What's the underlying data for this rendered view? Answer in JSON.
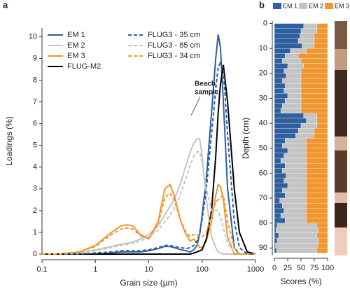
{
  "chart_data": [
    {
      "type": "line",
      "label": "a",
      "xlabel": "Grain size (µm)",
      "ylabel": "Loadings (%)",
      "log_x": true,
      "xlim": [
        0.1,
        1000
      ],
      "xticks": [
        0.1,
        1,
        10,
        100,
        1000
      ],
      "ylim": [
        0,
        10.4
      ],
      "yticks": [
        0,
        1,
        2,
        3,
        4,
        5,
        6,
        7,
        8,
        9,
        10
      ],
      "annotation": [
        "Beach",
        "sample"
      ],
      "x": [
        0.1,
        0.2,
        0.5,
        1,
        2,
        3,
        4,
        5,
        7,
        10,
        15,
        20,
        25,
        30,
        40,
        50,
        60,
        70,
        80,
        90,
        100,
        120,
        150,
        180,
        200,
        220,
        250,
        300,
        400,
        500,
        700,
        1000
      ],
      "series": [
        {
          "name": "EM 1",
          "color": "#2e5f9e",
          "dash": false,
          "values": [
            0,
            0,
            0,
            0,
            0.05,
            0.1,
            0.1,
            0.1,
            0.1,
            0.15,
            0.25,
            0.35,
            0.35,
            0.3,
            0.2,
            0.15,
            0.1,
            0.2,
            0.4,
            0.9,
            1.8,
            3.5,
            6.5,
            9,
            10.1,
            9.5,
            7,
            3,
            0.3,
            0,
            0,
            0
          ]
        },
        {
          "name": "EM 2",
          "color": "#c4c4c4",
          "dash": false,
          "values": [
            0,
            0,
            0.05,
            0.2,
            0.35,
            0.45,
            0.5,
            0.55,
            0.7,
            0.9,
            1.3,
            1.8,
            2.2,
            2.5,
            3.3,
            4.1,
            4.7,
            5.1,
            5.3,
            5.3,
            4.5,
            2.5,
            0.8,
            0.3,
            0.1,
            0.05,
            0,
            0,
            0,
            0,
            0,
            0
          ]
        },
        {
          "name": "EM 3",
          "color": "#f0962e",
          "dash": false,
          "values": [
            0,
            0,
            0.1,
            0.4,
            1.0,
            1.3,
            1.35,
            1.3,
            0.9,
            0.7,
            1.5,
            3.0,
            3.2,
            2.7,
            1.5,
            0.9,
            0.6,
            0.7,
            0.5,
            0.3,
            0.3,
            0.6,
            1.5,
            2.7,
            3.2,
            3.1,
            2.5,
            0.8,
            0,
            0,
            0,
            0
          ]
        },
        {
          "name": "FLUG-M2",
          "color": "#000000",
          "dash": false,
          "values": [
            0,
            0,
            0,
            0,
            0,
            0,
            0,
            0,
            0,
            0,
            0,
            0,
            0,
            0,
            0,
            0,
            0,
            0.05,
            0.1,
            0.15,
            0.2,
            0.7,
            2,
            4.5,
            6.5,
            7.8,
            8.7,
            7,
            3,
            1,
            0.1,
            0
          ]
        },
        {
          "name": "FLUG3 - 35 cm",
          "color": "#2e5f9e",
          "dash": true,
          "values": [
            0,
            0,
            0,
            0.05,
            0.1,
            0.15,
            0.15,
            0.15,
            0.15,
            0.2,
            0.3,
            0.4,
            0.4,
            0.35,
            0.3,
            0.25,
            0.3,
            0.4,
            0.6,
            1.0,
            1.6,
            3,
            5.5,
            7.6,
            8.6,
            8.8,
            8.5,
            5.5,
            1.5,
            0.3,
            0,
            0
          ]
        },
        {
          "name": "FLUG3 - 85 cm",
          "color": "#c4c4c4",
          "dash": true,
          "values": [
            0,
            0,
            0.05,
            0.15,
            0.3,
            0.4,
            0.45,
            0.5,
            0.6,
            0.8,
            1.1,
            1.5,
            1.8,
            2.1,
            2.8,
            3.5,
            4.1,
            4.5,
            4.7,
            4.7,
            4.2,
            3,
            2,
            2,
            2,
            1.7,
            1.2,
            0.5,
            0.1,
            0,
            0,
            0
          ]
        },
        {
          "name": "FLUG3 - 34 cm",
          "color": "#f0962e",
          "dash": true,
          "values": [
            0,
            0,
            0.1,
            0.35,
            0.9,
            1.15,
            1.2,
            1.15,
            0.85,
            0.7,
            1.4,
            2.6,
            2.8,
            2.5,
            1.5,
            1.0,
            0.8,
            0.9,
            0.9,
            0.8,
            0.8,
            1.0,
            1.8,
            2.4,
            2.5,
            2.6,
            2.7,
            1.5,
            0.3,
            0,
            0,
            0
          ]
        }
      ]
    },
    {
      "type": "stacked_hbar",
      "label": "b",
      "xlabel": "Scores (%)",
      "ylabel": "Depth (cm)",
      "xlim": [
        0,
        100
      ],
      "xticks": [
        0,
        25,
        50,
        75,
        100
      ],
      "ylim": [
        -1,
        93
      ],
      "yticks": [
        0,
        10,
        20,
        30,
        40,
        50,
        60,
        70,
        80,
        90
      ],
      "y": [
        0,
        2,
        4,
        6,
        8,
        10,
        12,
        14,
        16,
        18,
        20,
        22,
        24,
        26,
        28,
        30,
        32,
        34,
        36,
        38,
        40,
        42,
        44,
        46,
        48,
        50,
        52,
        54,
        56,
        58,
        60,
        62,
        64,
        66,
        68,
        70,
        72,
        74,
        76,
        78,
        80,
        82,
        84,
        86,
        88,
        90
      ],
      "series": [
        {
          "name": "EM 1",
          "color": "#2e5f9e",
          "values": [
            55,
            50,
            48,
            45,
            52,
            30,
            20,
            15,
            25,
            18,
            22,
            15,
            20,
            18,
            25,
            20,
            15,
            12,
            55,
            60,
            50,
            45,
            40,
            20,
            15,
            25,
            18,
            12,
            20,
            15,
            22,
            18,
            25,
            15,
            20,
            10,
            15,
            18,
            12,
            20,
            5,
            3,
            8,
            5,
            2,
            4
          ]
        },
        {
          "name": "EM 2",
          "color": "#c4c4c4",
          "values": [
            25,
            30,
            27,
            30,
            23,
            30,
            25,
            35,
            30,
            32,
            28,
            35,
            30,
            32,
            25,
            30,
            35,
            38,
            25,
            20,
            30,
            30,
            35,
            40,
            45,
            35,
            42,
            48,
            40,
            45,
            38,
            42,
            35,
            45,
            40,
            50,
            45,
            42,
            48,
            40,
            75,
            80,
            72,
            78,
            80,
            76
          ]
        },
        {
          "name": "EM 3",
          "color": "#f0962e",
          "values": [
            20,
            20,
            25,
            25,
            25,
            40,
            55,
            50,
            45,
            50,
            50,
            50,
            50,
            50,
            50,
            50,
            50,
            50,
            20,
            20,
            20,
            25,
            25,
            40,
            40,
            40,
            40,
            40,
            40,
            40,
            40,
            40,
            40,
            40,
            40,
            40,
            40,
            40,
            40,
            40,
            20,
            17,
            20,
            17,
            18,
            20
          ]
        }
      ]
    }
  ]
}
